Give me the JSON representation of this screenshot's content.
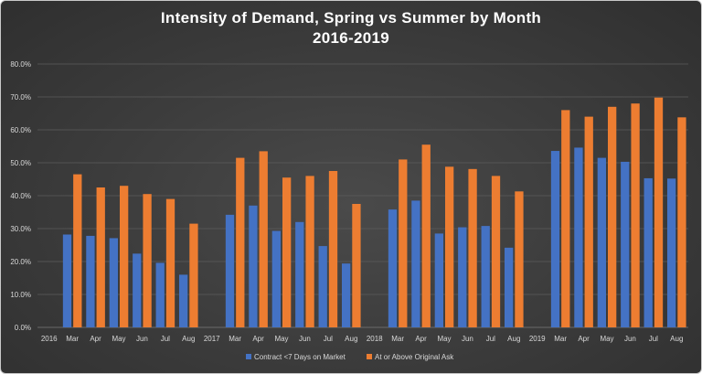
{
  "colors": {
    "contract": "#4472c4",
    "ask": "#ed7d31",
    "grid": "#5c5c5c",
    "text": "#d9d9d9"
  },
  "chart_data": {
    "type": "bar",
    "title": "Intensity of Demand, Spring vs Summer by Month",
    "subtitle": "2016-2019",
    "xlabel": "",
    "ylabel": "",
    "ylim": [
      0,
      80
    ],
    "yticks": [
      0,
      10,
      20,
      30,
      40,
      50,
      60,
      70,
      80
    ],
    "ytick_labels": [
      "0.0%",
      "10.0%",
      "20.0%",
      "30.0%",
      "40.0%",
      "50.0%",
      "60.0%",
      "70.0%",
      "80.0%"
    ],
    "grid": true,
    "legend_position": "bottom",
    "categories": [
      "2016",
      "Mar",
      "Apr",
      "May",
      "Jun",
      "Jul",
      "Aug",
      "2017",
      "Mar",
      "Apr",
      "May",
      "Jun",
      "Jul",
      "Aug",
      "2018",
      "Mar",
      "Apr",
      "May",
      "Jun",
      "Jul",
      "Aug",
      "2019",
      "Mar",
      "Apr",
      "May",
      "Jun",
      "Jul",
      "Aug"
    ],
    "series": [
      {
        "name": "Contract <7 Days on Market",
        "values": [
          null,
          28.2,
          27.8,
          27.1,
          22.4,
          19.6,
          16.0,
          null,
          34.2,
          37.0,
          29.3,
          32.0,
          24.7,
          19.4,
          null,
          35.8,
          38.5,
          28.5,
          30.4,
          30.8,
          24.2,
          null,
          53.6,
          54.6,
          51.5,
          50.3,
          45.3,
          45.2
        ]
      },
      {
        "name": "At or Above Original Ask",
        "values": [
          null,
          46.5,
          42.5,
          43.0,
          40.5,
          39.0,
          31.5,
          null,
          51.5,
          53.5,
          45.5,
          46.0,
          47.5,
          37.5,
          null,
          51.0,
          55.5,
          48.8,
          48.1,
          46.0,
          41.3,
          null,
          66.0,
          64.0,
          67.0,
          68.0,
          69.8,
          63.8
        ]
      }
    ]
  }
}
